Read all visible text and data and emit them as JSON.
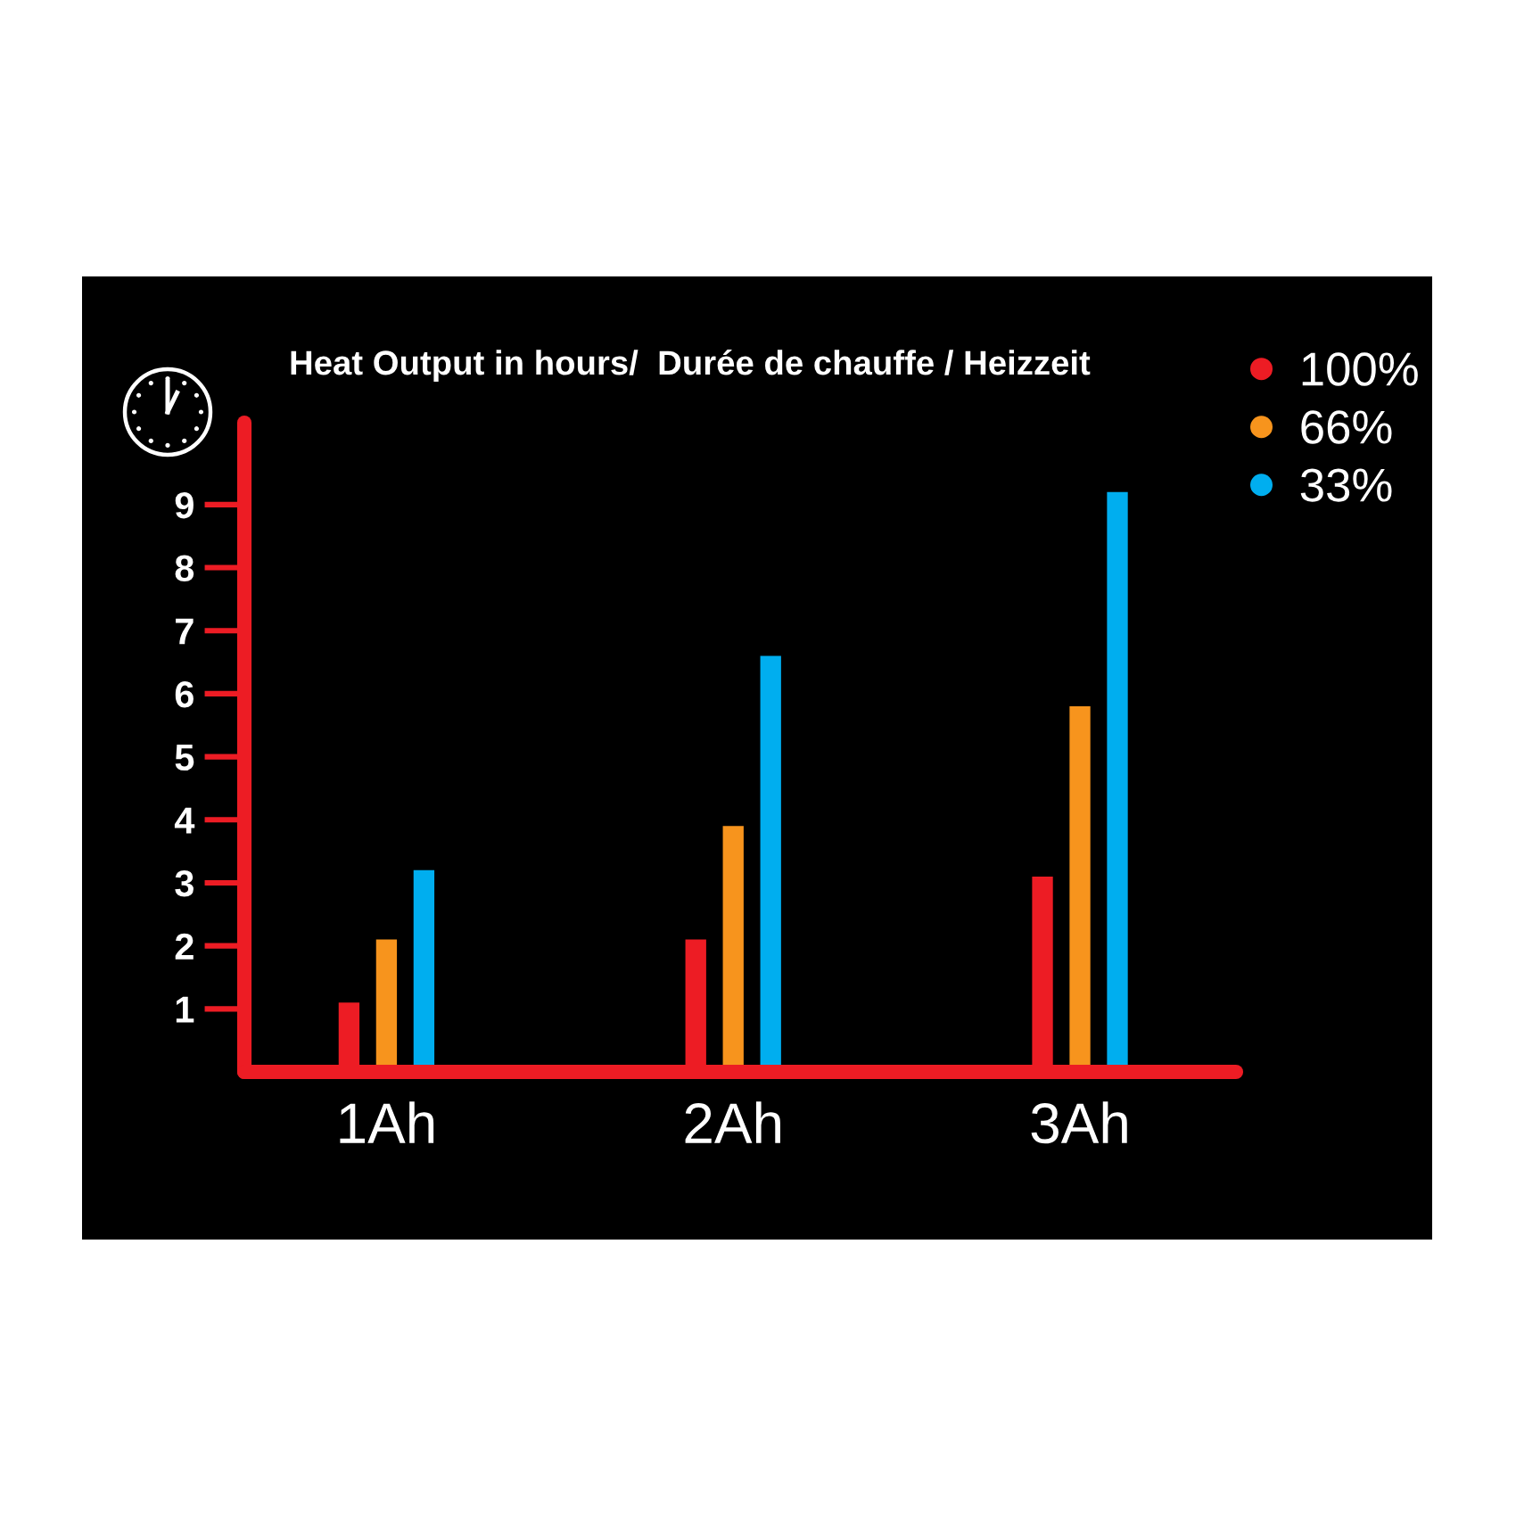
{
  "chart_data": {
    "type": "bar",
    "title": "Heat Output in hours/  Durée de chauffe / Heizzeit",
    "categories": [
      "1Ah",
      "2Ah",
      "3Ah"
    ],
    "series": [
      {
        "name": "100%",
        "color": "#ed1c24",
        "values": [
          1.1,
          2.1,
          3.1
        ]
      },
      {
        "name": "66%",
        "color": "#f7941d",
        "values": [
          2.1,
          3.9,
          5.8
        ]
      },
      {
        "name": "33%",
        "color": "#00aeef",
        "values": [
          3.2,
          6.6,
          9.2
        ]
      }
    ],
    "ylim": [
      0,
      10.3
    ],
    "yticks": [
      1,
      2,
      3,
      4,
      5,
      6,
      7,
      8,
      9
    ],
    "legend": "top right"
  }
}
